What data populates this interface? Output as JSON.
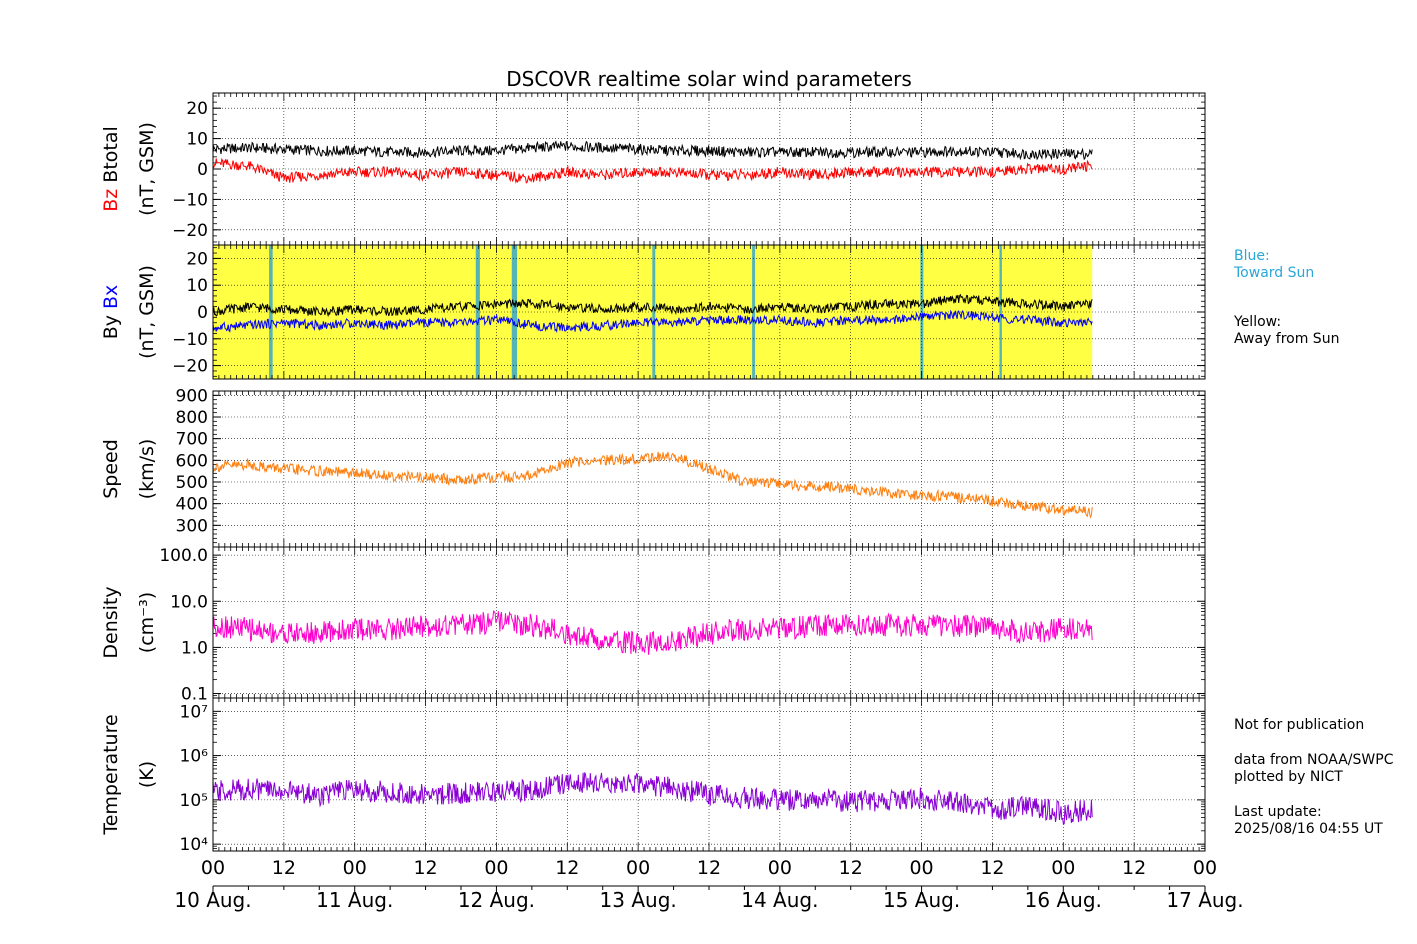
{
  "title": "DSCOVR realtime solar wind parameters",
  "legend": {
    "blue_label": "Blue:",
    "blue_desc": "Toward Sun",
    "yellow_label": "Yellow:",
    "yellow_desc": "Away from Sun",
    "toward_color": "#3aa7c9",
    "away_color": "#ffff44"
  },
  "notes": {
    "publication": "Not for publication",
    "source1": "data from NOAA/SWPC",
    "source2": "plotted by NICT",
    "update_label": "Last update:",
    "update_value": "2025/08/16 04:55 UT"
  },
  "x_axis": {
    "hour_ticks": [
      "00",
      "12",
      "00",
      "12",
      "00",
      "12",
      "00",
      "12",
      "00",
      "12",
      "00",
      "12",
      "00",
      "12",
      "00"
    ],
    "day_labels": [
      "10 Aug.",
      "11 Aug.",
      "12 Aug.",
      "13 Aug.",
      "14 Aug.",
      "15 Aug.",
      "16 Aug.",
      "17 Aug."
    ],
    "range_hours": [
      0,
      168
    ],
    "data_end_hours": 148.9
  },
  "chart_data": [
    {
      "type": "line",
      "ylabel_parts": [
        {
          "text": "Bz",
          "color": "#ff0000"
        },
        {
          "text": "Btotal",
          "color": "#000000"
        }
      ],
      "ylabel_sub": "(nT, GSM)",
      "ylim": [
        -25,
        25
      ],
      "yticks": [
        20,
        10,
        0,
        -10,
        -20
      ],
      "ytick_labels": [
        "20",
        "10",
        "0",
        "−10",
        "−20"
      ],
      "grid": true,
      "series": [
        {
          "name": "Btotal",
          "color": "#000000",
          "x": [
            0,
            6,
            12,
            18,
            24,
            30,
            36,
            42,
            48,
            54,
            60,
            66,
            72,
            78,
            84,
            90,
            96,
            102,
            108,
            114,
            120,
            126,
            132,
            138,
            144,
            148.9
          ],
          "y": [
            6.5,
            7,
            6.5,
            6,
            6,
            5.5,
            5.5,
            6,
            6,
            7,
            7.5,
            7,
            6.5,
            6,
            6,
            5.5,
            5.5,
            5.5,
            5.5,
            5.5,
            5.5,
            6,
            5.5,
            5,
            5,
            5
          ]
        },
        {
          "name": "Bz",
          "color": "#ff0000",
          "x": [
            0,
            6,
            12,
            18,
            24,
            30,
            36,
            42,
            48,
            54,
            60,
            66,
            72,
            78,
            84,
            90,
            96,
            102,
            108,
            114,
            120,
            126,
            132,
            138,
            144,
            148.9
          ],
          "y": [
            2,
            1,
            -3,
            -2,
            -1,
            -1,
            -2,
            -1,
            -2,
            -3,
            -1,
            -2,
            -1,
            -1,
            -2,
            -2,
            -1,
            -2,
            -1,
            -1,
            -1,
            -1,
            -1,
            0,
            0,
            1
          ]
        }
      ]
    },
    {
      "type": "line",
      "ylabel_parts": [
        {
          "text": "By",
          "color": "#000000"
        },
        {
          "text": "Bx",
          "color": "#0000ff"
        }
      ],
      "ylabel_sub": "(nT, GSM)",
      "ylim": [
        -25,
        25
      ],
      "yticks": [
        20,
        10,
        0,
        -10,
        -20
      ],
      "ytick_labels": [
        "20",
        "10",
        "0",
        "−10",
        "−20"
      ],
      "grid": true,
      "background_bands": [
        {
          "start": 0,
          "end": 148.9,
          "label": "away"
        },
        {
          "start": 9.5,
          "end": 10.1,
          "label": "toward"
        },
        {
          "start": 44.5,
          "end": 45.2,
          "label": "toward"
        },
        {
          "start": 50.6,
          "end": 51.5,
          "label": "toward"
        },
        {
          "start": 74.4,
          "end": 74.9,
          "label": "toward"
        },
        {
          "start": 91.3,
          "end": 91.8,
          "label": "toward"
        },
        {
          "start": 119.8,
          "end": 120.3,
          "label": "toward"
        },
        {
          "start": 133.2,
          "end": 133.6,
          "label": "toward"
        }
      ],
      "series": [
        {
          "name": "By",
          "color": "#000000",
          "x": [
            0,
            6,
            12,
            18,
            24,
            30,
            36,
            42,
            48,
            54,
            60,
            66,
            72,
            78,
            84,
            90,
            96,
            102,
            108,
            114,
            120,
            126,
            132,
            138,
            144,
            148.9
          ],
          "y": [
            0,
            2,
            1,
            0,
            1,
            0,
            1,
            2,
            3,
            3,
            2,
            1,
            2,
            1,
            2,
            1,
            2,
            1,
            2,
            3,
            3,
            5,
            4,
            3,
            2,
            3
          ]
        },
        {
          "name": "Bx",
          "color": "#0000ff",
          "x": [
            0,
            6,
            12,
            18,
            24,
            30,
            36,
            42,
            48,
            54,
            60,
            66,
            72,
            78,
            84,
            90,
            96,
            102,
            108,
            114,
            120,
            126,
            132,
            138,
            144,
            148.9
          ],
          "y": [
            -6,
            -5,
            -4,
            -5,
            -4,
            -5,
            -4,
            -4,
            -3,
            -5,
            -6,
            -5,
            -4,
            -4,
            -3,
            -3,
            -3,
            -4,
            -3,
            -3,
            -2,
            -1,
            -2,
            -3,
            -4,
            -4
          ]
        }
      ]
    },
    {
      "type": "line",
      "ylabel_parts": [
        {
          "text": "Speed",
          "color": "#000000"
        }
      ],
      "ylabel_sub": "(km/s)",
      "ylim": [
        200,
        920
      ],
      "yticks": [
        900,
        800,
        700,
        600,
        500,
        400,
        300
      ],
      "ytick_labels": [
        "900",
        "800",
        "700",
        "600",
        "500",
        "400",
        "300"
      ],
      "grid": true,
      "series": [
        {
          "name": "Speed",
          "color": "#ff7f0e",
          "x": [
            0,
            6,
            12,
            18,
            24,
            30,
            36,
            42,
            48,
            54,
            60,
            66,
            72,
            78,
            84,
            90,
            96,
            102,
            108,
            114,
            120,
            126,
            132,
            138,
            144,
            148.9
          ],
          "y": [
            570,
            580,
            560,
            550,
            540,
            530,
            520,
            510,
            520,
            530,
            590,
            600,
            610,
            620,
            560,
            500,
            490,
            480,
            470,
            450,
            440,
            430,
            410,
            390,
            370,
            360
          ]
        }
      ]
    },
    {
      "type": "line",
      "log_scale": true,
      "ylabel_parts": [
        {
          "text": "Density",
          "color": "#000000"
        }
      ],
      "ylabel_sub": "(cm⁻³)",
      "ylim": [
        0.08,
        150
      ],
      "yticks": [
        100,
        10,
        1,
        0.1
      ],
      "ytick_labels": [
        "100.0",
        "10.0",
        "1.0",
        "0.1"
      ],
      "grid": true,
      "series": [
        {
          "name": "Density",
          "color": "#ff00cc",
          "x": [
            0,
            6,
            12,
            18,
            24,
            30,
            36,
            42,
            48,
            54,
            60,
            66,
            72,
            78,
            84,
            90,
            96,
            102,
            108,
            114,
            120,
            126,
            132,
            138,
            144,
            148.9
          ],
          "y": [
            3,
            2.5,
            2,
            2,
            2.5,
            2.5,
            3,
            3,
            3.5,
            3,
            2,
            1.5,
            1.2,
            1.3,
            2,
            2.5,
            2.5,
            3,
            3,
            3,
            3,
            3,
            2.5,
            2,
            2.5,
            2.5
          ]
        }
      ]
    },
    {
      "type": "line",
      "log_scale": true,
      "ylabel_parts": [
        {
          "text": "Temperature",
          "color": "#000000"
        }
      ],
      "ylabel_sub": "(K)",
      "ylim": [
        7000,
        20000000
      ],
      "yticks": [
        10000,
        100000,
        1000000,
        10000000
      ],
      "ytick_labels": [
        "10⁴",
        "10⁵",
        "10⁶",
        "10⁷"
      ],
      "grid": true,
      "series": [
        {
          "name": "Temperature",
          "color": "#8a00d4",
          "x": [
            0,
            6,
            12,
            18,
            24,
            30,
            36,
            42,
            48,
            54,
            60,
            66,
            72,
            78,
            84,
            90,
            96,
            102,
            108,
            114,
            120,
            126,
            132,
            138,
            144,
            148.9
          ],
          "y": [
            150000,
            180000,
            160000,
            130000,
            170000,
            150000,
            130000,
            140000,
            150000,
            170000,
            230000,
            250000,
            240000,
            180000,
            130000,
            110000,
            100000,
            100000,
            90000,
            100000,
            110000,
            90000,
            60000,
            70000,
            50000,
            60000
          ]
        }
      ]
    }
  ]
}
